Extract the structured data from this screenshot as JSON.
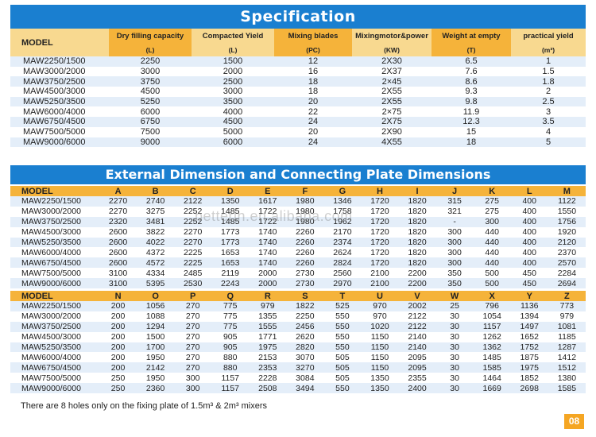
{
  "spec": {
    "title": "Specification",
    "model_label": "MODEL",
    "columns": [
      {
        "name": "Dry filling capacity",
        "unit": "(L)"
      },
      {
        "name": "Compacted Yield",
        "unit": "(L)"
      },
      {
        "name": "Mixing blades",
        "unit": "(PC)"
      },
      {
        "name": "Mixingmotor&power",
        "unit": "(KW)"
      },
      {
        "name": "Weight at empty",
        "unit": "(T)"
      },
      {
        "name": "practical yield",
        "unit": "(m³)"
      }
    ],
    "rows": [
      {
        "model": "MAW2250/1500",
        "values": [
          "2250",
          "1500",
          "12",
          "2X30",
          "6.5",
          "1"
        ]
      },
      {
        "model": "MAW3000/2000",
        "values": [
          "3000",
          "2000",
          "16",
          "2X37",
          "7.6",
          "1.5"
        ]
      },
      {
        "model": "MAW3750/2500",
        "values": [
          "3750",
          "2500",
          "18",
          "2×45",
          "8.6",
          "1.8"
        ]
      },
      {
        "model": "MAW4500/3000",
        "values": [
          "4500",
          "3000",
          "18",
          "2X55",
          "9.3",
          "2"
        ]
      },
      {
        "model": "MAW5250/3500",
        "values": [
          "5250",
          "3500",
          "20",
          "2X55",
          "9.8",
          "2.5"
        ]
      },
      {
        "model": "MAW6000/4000",
        "values": [
          "6000",
          "4000",
          "22",
          "2×75",
          "11.9",
          "3"
        ]
      },
      {
        "model": "MAW6750/4500",
        "values": [
          "6750",
          "4500",
          "24",
          "2X75",
          "12.3",
          "3.5"
        ]
      },
      {
        "model": "MAW7500/5000",
        "values": [
          "7500",
          "5000",
          "20",
          "2X90",
          "15",
          "4"
        ]
      },
      {
        "model": "MAW9000/6000",
        "values": [
          "9000",
          "6000",
          "24",
          "4X55",
          "18",
          "5"
        ]
      }
    ]
  },
  "ext": {
    "title": "External Dimension and Connecting Plate Dimensions",
    "table1": {
      "headers": [
        "MODEL",
        "A",
        "B",
        "C",
        "D",
        "E",
        "F",
        "G",
        "H",
        "I",
        "J",
        "K",
        "L",
        "M"
      ],
      "rows": [
        [
          "MAW2250/1500",
          "2270",
          "2740",
          "2122",
          "1350",
          "1617",
          "1980",
          "1346",
          "1720",
          "1820",
          "315",
          "275",
          "400",
          "1122"
        ],
        [
          "MAW3000/2000",
          "2270",
          "3275",
          "2252",
          "1485",
          "1722",
          "1980",
          "1758",
          "1720",
          "1820",
          "321",
          "275",
          "400",
          "1550"
        ],
        [
          "MAW3750/2500",
          "2320",
          "3481",
          "2252",
          "1485",
          "1722",
          "1980",
          "1962",
          "1720",
          "1820",
          "-",
          "300",
          "400",
          "1756"
        ],
        [
          "MAW4500/3000",
          "2600",
          "3822",
          "2270",
          "1773",
          "1740",
          "2260",
          "2170",
          "1720",
          "1820",
          "300",
          "440",
          "400",
          "1920"
        ],
        [
          "MAW5250/3500",
          "2600",
          "4022",
          "2270",
          "1773",
          "1740",
          "2260",
          "2374",
          "1720",
          "1820",
          "300",
          "440",
          "400",
          "2120"
        ],
        [
          "MAW6000/4000",
          "2600",
          "4372",
          "2225",
          "1653",
          "1740",
          "2260",
          "2624",
          "1720",
          "1820",
          "300",
          "440",
          "400",
          "2370"
        ],
        [
          "MAW6750/4500",
          "2600",
          "4572",
          "2225",
          "1653",
          "1740",
          "2260",
          "2824",
          "1720",
          "1820",
          "300",
          "440",
          "400",
          "2570"
        ],
        [
          "MAW7500/5000",
          "3100",
          "4334",
          "2485",
          "2119",
          "2000",
          "2730",
          "2560",
          "2100",
          "2200",
          "350",
          "500",
          "450",
          "2284"
        ],
        [
          "MAW9000/6000",
          "3100",
          "5395",
          "2530",
          "2243",
          "2000",
          "2730",
          "2970",
          "2100",
          "2200",
          "350",
          "500",
          "450",
          "2694"
        ]
      ]
    },
    "table2": {
      "headers": [
        "MODEL",
        "N",
        "O",
        "P",
        "Q",
        "R",
        "S",
        "T",
        "U",
        "V",
        "W",
        "X",
        "Y",
        "Z"
      ],
      "rows": [
        [
          "MAW2250/1500",
          "200",
          "1056",
          "270",
          "775",
          "979",
          "1822",
          "525",
          "970",
          "2002",
          "25",
          "796",
          "1136",
          "773"
        ],
        [
          "MAW3000/2000",
          "200",
          "1088",
          "270",
          "775",
          "1355",
          "2250",
          "550",
          "970",
          "2122",
          "30",
          "1054",
          "1394",
          "979"
        ],
        [
          "MAW3750/2500",
          "200",
          "1294",
          "270",
          "775",
          "1555",
          "2456",
          "550",
          "1020",
          "2122",
          "30",
          "1157",
          "1497",
          "1081"
        ],
        [
          "MAW4500/3000",
          "200",
          "1500",
          "270",
          "905",
          "1771",
          "2620",
          "550",
          "1150",
          "2140",
          "30",
          "1262",
          "1652",
          "1185"
        ],
        [
          "MAW5250/3500",
          "200",
          "1700",
          "270",
          "905",
          "1975",
          "2820",
          "550",
          "1150",
          "2140",
          "30",
          "1362",
          "1752",
          "1287"
        ],
        [
          "MAW6000/4000",
          "200",
          "1950",
          "270",
          "880",
          "2153",
          "3070",
          "505",
          "1150",
          "2095",
          "30",
          "1485",
          "1875",
          "1412"
        ],
        [
          "MAW6750/4500",
          "200",
          "2142",
          "270",
          "880",
          "2353",
          "3270",
          "505",
          "1150",
          "2095",
          "30",
          "1585",
          "1975",
          "1512"
        ],
        [
          "MAW7500/5000",
          "250",
          "1950",
          "300",
          "1157",
          "2228",
          "3084",
          "505",
          "1350",
          "2355",
          "30",
          "1464",
          "1852",
          "1380"
        ],
        [
          "MAW9000/6000",
          "250",
          "2360",
          "300",
          "1157",
          "2508",
          "3494",
          "550",
          "1350",
          "2400",
          "30",
          "1669",
          "2698",
          "1585"
        ]
      ]
    }
  },
  "footnote": "There are 8 holes only on the fixing plate of 1.5m³ & 2m³ mixers",
  "page_number": "08",
  "watermark": "betterin.en.alibaba.com",
  "colors": {
    "banner": "#1a7fd0",
    "header_orange": "#f5b33a",
    "header_light": "#f8d990",
    "row_blue": "#e4eef9",
    "page_badge": "#f5a623"
  }
}
